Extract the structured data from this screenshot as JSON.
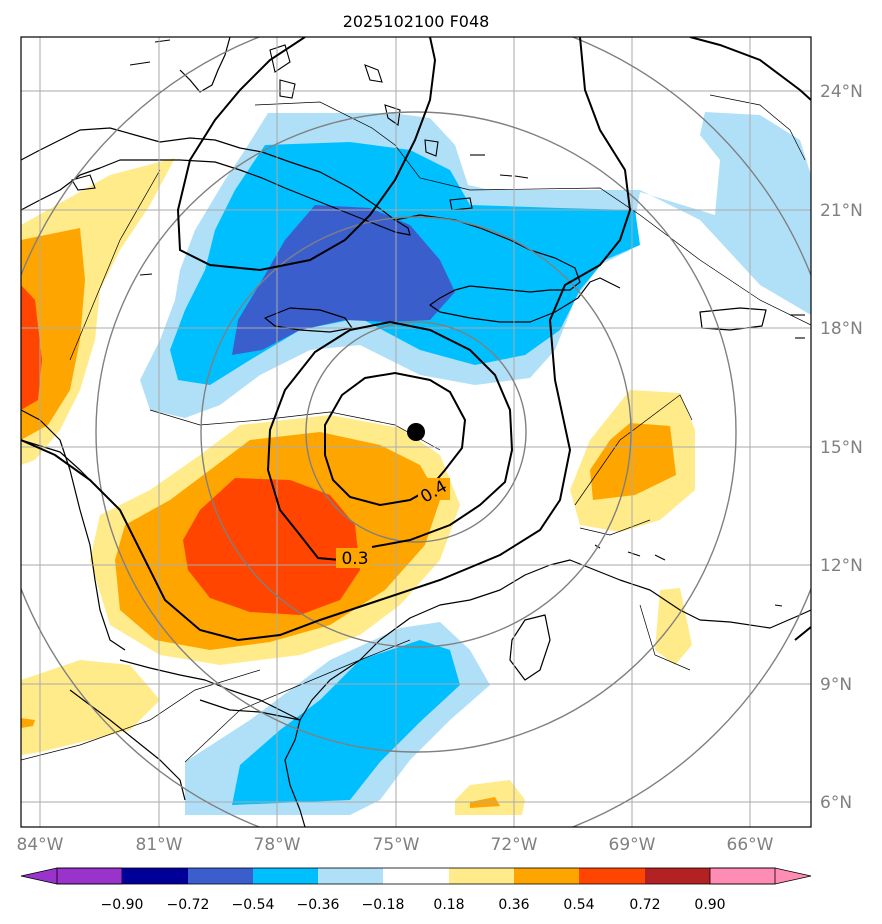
{
  "title": "2025102100 F048",
  "lat_labels": [
    "24°N",
    "21°N",
    "18°N",
    "15°N",
    "12°N",
    "9°N",
    "6°N"
  ],
  "lon_labels": [
    "84°W",
    "81°W",
    "78°W",
    "75°W",
    "72°W",
    "69°W",
    "66°W"
  ],
  "contour_labels": [
    "0.4",
    "0.3"
  ],
  "colorbar": {
    "ticks": [
      "−0.90",
      "−0.72",
      "−0.54",
      "−0.36",
      "−0.18",
      "0.18",
      "0.36",
      "0.54",
      "0.72",
      "0.90"
    ],
    "colors": [
      "#9933cc",
      "#000099",
      "#3a5fcd",
      "#00bfff",
      "#b0e0f8",
      "#ffffff",
      "#ffeb8a",
      "#ffa500",
      "#ff4500",
      "#b22222",
      "#ff8cb4"
    ]
  },
  "storm_center": {
    "lat": 15.4,
    "lon": -74.4
  },
  "colors": {
    "land_outline": "#000000",
    "range_rings": "#808080",
    "gridlines": "#aaaaaa",
    "tick_labels": "#808080"
  }
}
